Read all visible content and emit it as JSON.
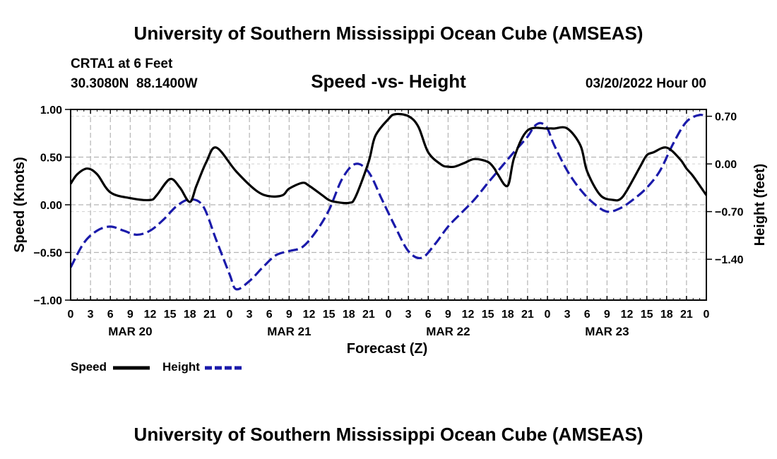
{
  "header": {
    "title": "University of Southern Mississippi Ocean Cube (AMSEAS)",
    "station": "CRTA1 at 6 Feet",
    "coords": "30.3080N  88.1400W",
    "subtitle": "Speed -vs- Height",
    "date": "03/20/2022 Hour 00"
  },
  "footer": {
    "title": "University of Southern Mississippi Ocean Cube (AMSEAS)"
  },
  "chart_data": {
    "type": "line",
    "title": "Speed -vs- Height",
    "xlabel": "Forecast (Z)",
    "ylabel": "Speed (Knots)",
    "y2label": "Height (feet)",
    "xlim": [
      0,
      96
    ],
    "ylim": [
      -1.0,
      1.0
    ],
    "y2lim": [
      -2.0,
      0.8
    ],
    "grid": true,
    "legend_position": "bottom-left",
    "x_ticks": [
      0,
      3,
      6,
      9,
      12,
      15,
      18,
      21,
      24,
      27,
      30,
      33,
      36,
      39,
      42,
      45,
      48,
      51,
      54,
      57,
      60,
      63,
      66,
      69,
      72,
      75,
      78,
      81,
      84,
      87,
      90,
      93,
      96
    ],
    "x_tick_labels": [
      "0",
      "3",
      "6",
      "9",
      "12",
      "15",
      "18",
      "21",
      "0",
      "3",
      "6",
      "9",
      "12",
      "15",
      "18",
      "21",
      "0",
      "3",
      "6",
      "9",
      "12",
      "15",
      "18",
      "21",
      "0",
      "3",
      "6",
      "9",
      "12",
      "15",
      "18",
      "21",
      "0"
    ],
    "day_labels": [
      {
        "x": 9,
        "label": "MAR 20"
      },
      {
        "x": 33,
        "label": "MAR 21"
      },
      {
        "x": 57,
        "label": "MAR 22"
      },
      {
        "x": 81,
        "label": "MAR 23"
      }
    ],
    "y_ticks": [
      {
        "value": -1.0,
        "label": "−1.00"
      },
      {
        "value": -0.5,
        "label": "−0.50"
      },
      {
        "value": 0.0,
        "label": "0.00"
      },
      {
        "value": 0.5,
        "label": "0.50"
      },
      {
        "value": 1.0,
        "label": "1.00"
      }
    ],
    "y2_ticks": [
      {
        "value": 0.7,
        "label": "0.70"
      },
      {
        "value": 0.0,
        "label": "0.00"
      },
      {
        "value": -0.7,
        "label": "−0.70"
      },
      {
        "value": -1.4,
        "label": "−1.40"
      }
    ],
    "series": [
      {
        "name": "Speed",
        "axis": "left",
        "color": "#000000",
        "dash": "solid",
        "x": [
          0,
          1,
          2.5,
          4,
          6,
          9,
          12,
          13,
          15,
          16.5,
          18,
          19,
          20.5,
          22,
          25,
          28,
          30,
          32,
          33,
          35,
          36,
          38,
          39,
          40,
          42,
          43,
          45,
          46,
          48,
          49,
          51,
          52.5,
          54,
          56,
          57,
          58,
          59.5,
          61,
          63,
          64,
          64.5,
          66,
          67,
          69,
          72,
          73,
          75,
          77,
          78,
          80,
          82,
          83,
          84,
          86,
          87,
          88,
          90,
          92,
          93,
          94,
          96
        ],
        "y": [
          0.22,
          0.32,
          0.38,
          0.32,
          0.13,
          0.07,
          0.05,
          0.1,
          0.27,
          0.18,
          0.03,
          0.2,
          0.45,
          0.6,
          0.35,
          0.15,
          0.09,
          0.1,
          0.17,
          0.23,
          0.2,
          0.1,
          0.05,
          0.03,
          0.02,
          0.08,
          0.45,
          0.72,
          0.9,
          0.95,
          0.93,
          0.82,
          0.55,
          0.42,
          0.4,
          0.4,
          0.44,
          0.48,
          0.45,
          0.38,
          0.32,
          0.2,
          0.5,
          0.78,
          0.8,
          0.8,
          0.8,
          0.62,
          0.35,
          0.1,
          0.05,
          0.06,
          0.15,
          0.4,
          0.52,
          0.55,
          0.6,
          0.48,
          0.38,
          0.3,
          0.1
        ]
      },
      {
        "name": "Height",
        "axis": "right",
        "color": "#1a1aaa",
        "dash": "dashed",
        "x": [
          0,
          2,
          4,
          6,
          8,
          10,
          12,
          14,
          16,
          18,
          20,
          22,
          24,
          25,
          27,
          29,
          31,
          33,
          35,
          37,
          39,
          41,
          43,
          45,
          47,
          49,
          51,
          53,
          55,
          57,
          59,
          61,
          63,
          65,
          67,
          69,
          70,
          71,
          72,
          73,
          75,
          77,
          79,
          81,
          83,
          85,
          87,
          89,
          91,
          93,
          95,
          96
        ],
        "y": [
          -1.52,
          -1.16,
          -0.98,
          -0.92,
          -0.98,
          -1.04,
          -0.98,
          -0.82,
          -0.62,
          -0.52,
          -0.62,
          -1.12,
          -1.62,
          -1.84,
          -1.72,
          -1.52,
          -1.34,
          -1.28,
          -1.22,
          -1.0,
          -0.68,
          -0.22,
          0.0,
          -0.12,
          -0.52,
          -0.92,
          -1.28,
          -1.38,
          -1.18,
          -0.92,
          -0.72,
          -0.52,
          -0.28,
          -0.05,
          0.18,
          0.4,
          0.55,
          0.6,
          0.52,
          0.28,
          -0.1,
          -0.38,
          -0.58,
          -0.7,
          -0.65,
          -0.52,
          -0.35,
          -0.1,
          0.3,
          0.62,
          0.72,
          0.68
        ]
      }
    ]
  }
}
